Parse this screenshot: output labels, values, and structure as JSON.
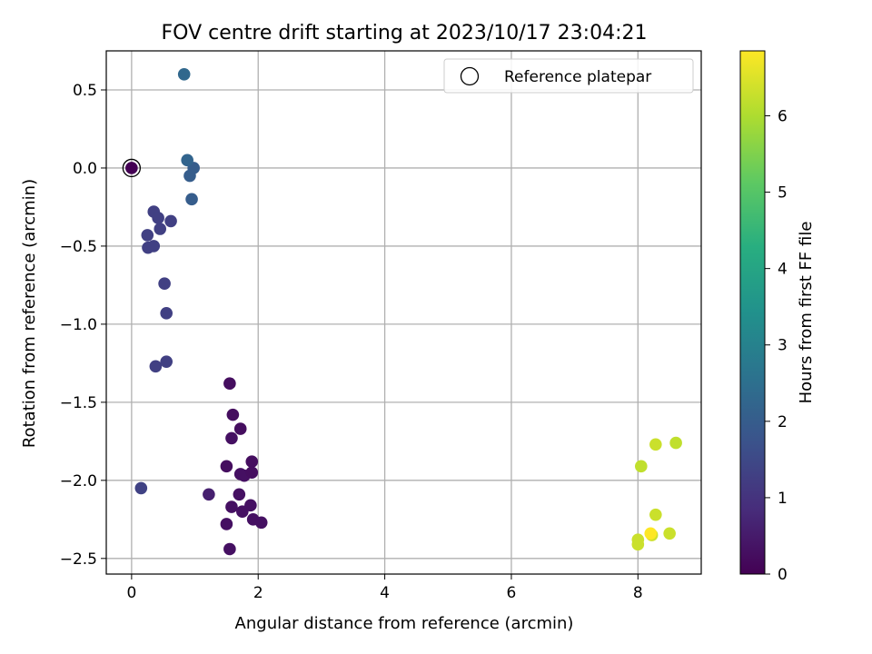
{
  "chart_data": {
    "type": "scatter",
    "title": "FOV centre drift starting at 2023/10/17 23:04:21",
    "xlabel": "Angular distance from reference (arcmin)",
    "ylabel": "Rotation from reference (arcmin)",
    "xlim": [
      -0.4,
      9.0
    ],
    "ylim": [
      -2.6,
      0.75
    ],
    "xticks": [
      0,
      2,
      4,
      6,
      8
    ],
    "xtick_labels": [
      "0",
      "2",
      "4",
      "6",
      "8"
    ],
    "yticks": [
      -2.5,
      -2.0,
      -1.5,
      -1.0,
      -0.5,
      0.0,
      0.5
    ],
    "ytick_labels": [
      "−2.5",
      "−2.0",
      "−1.5",
      "−1.0",
      "−0.5",
      "0.0",
      "0.5"
    ],
    "grid": true,
    "legend": {
      "placement": "top-right",
      "entries": [
        "Reference platepar"
      ]
    },
    "reference_point": {
      "x": 0,
      "y": 0
    },
    "colorbar": {
      "label": "Hours from first FF file",
      "colormap": "viridis",
      "range": [
        0,
        6.85
      ],
      "ticks": [
        0,
        1,
        2,
        3,
        4,
        5,
        6
      ],
      "tick_labels": [
        "0",
        "1",
        "2",
        "3",
        "4",
        "5",
        "6"
      ]
    },
    "points": [
      {
        "x": 0.0,
        "y": 0.0,
        "c": 0.0
      },
      {
        "x": 1.55,
        "y": -1.38,
        "c": 0.25
      },
      {
        "x": 1.6,
        "y": -1.58,
        "c": 0.25
      },
      {
        "x": 1.72,
        "y": -1.67,
        "c": 0.25
      },
      {
        "x": 1.58,
        "y": -1.73,
        "c": 0.3
      },
      {
        "x": 1.9,
        "y": -1.88,
        "c": 0.25
      },
      {
        "x": 1.5,
        "y": -1.91,
        "c": 0.25
      },
      {
        "x": 1.72,
        "y": -1.96,
        "c": 0.3
      },
      {
        "x": 1.78,
        "y": -1.97,
        "c": 0.3
      },
      {
        "x": 1.9,
        "y": -1.95,
        "c": 0.25
      },
      {
        "x": 1.7,
        "y": -2.09,
        "c": 0.3
      },
      {
        "x": 1.58,
        "y": -2.17,
        "c": 0.3
      },
      {
        "x": 1.88,
        "y": -2.16,
        "c": 0.3
      },
      {
        "x": 1.75,
        "y": -2.2,
        "c": 0.3
      },
      {
        "x": 1.92,
        "y": -2.25,
        "c": 0.3
      },
      {
        "x": 2.05,
        "y": -2.27,
        "c": 0.3
      },
      {
        "x": 1.5,
        "y": -2.28,
        "c": 0.3
      },
      {
        "x": 1.55,
        "y": -2.44,
        "c": 0.3
      },
      {
        "x": 1.22,
        "y": -2.09,
        "c": 0.6
      },
      {
        "x": 0.15,
        "y": -2.05,
        "c": 1.35
      },
      {
        "x": 0.38,
        "y": -1.27,
        "c": 1.3
      },
      {
        "x": 0.55,
        "y": -1.24,
        "c": 1.3
      },
      {
        "x": 0.55,
        "y": -0.93,
        "c": 1.3
      },
      {
        "x": 0.52,
        "y": -0.74,
        "c": 1.3
      },
      {
        "x": 0.26,
        "y": -0.51,
        "c": 1.3
      },
      {
        "x": 0.35,
        "y": -0.5,
        "c": 1.3
      },
      {
        "x": 0.25,
        "y": -0.43,
        "c": 1.3
      },
      {
        "x": 0.45,
        "y": -0.39,
        "c": 1.3
      },
      {
        "x": 0.35,
        "y": -0.28,
        "c": 1.3
      },
      {
        "x": 0.42,
        "y": -0.32,
        "c": 1.3
      },
      {
        "x": 0.62,
        "y": -0.34,
        "c": 1.3
      },
      {
        "x": 0.95,
        "y": -0.2,
        "c": 2.0
      },
      {
        "x": 0.92,
        "y": -0.05,
        "c": 2.0
      },
      {
        "x": 0.98,
        "y": 0.0,
        "c": 2.0
      },
      {
        "x": 0.88,
        "y": 0.05,
        "c": 2.2
      },
      {
        "x": 0.83,
        "y": 0.6,
        "c": 2.3
      },
      {
        "x": 8.05,
        "y": -1.91,
        "c": 6.2
      },
      {
        "x": 8.28,
        "y": -1.77,
        "c": 6.3
      },
      {
        "x": 8.6,
        "y": -1.76,
        "c": 6.2
      },
      {
        "x": 8.28,
        "y": -2.22,
        "c": 6.3
      },
      {
        "x": 8.5,
        "y": -2.34,
        "c": 6.3
      },
      {
        "x": 8.0,
        "y": -2.38,
        "c": 6.3
      },
      {
        "x": 8.0,
        "y": -2.41,
        "c": 6.3
      },
      {
        "x": 8.22,
        "y": -2.35,
        "c": 6.35
      },
      {
        "x": 8.2,
        "y": -2.34,
        "c": 6.85
      }
    ]
  }
}
